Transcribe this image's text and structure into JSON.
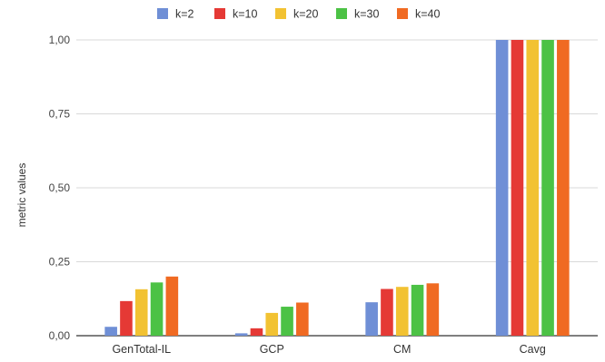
{
  "chart_data": {
    "type": "bar",
    "title": "",
    "xlabel": "",
    "ylabel": "metric values",
    "ylim": [
      0,
      1
    ],
    "yticks": [
      "0,00",
      "0,25",
      "0,50",
      "0,75",
      "1,00"
    ],
    "ytick_values": [
      0,
      0.25,
      0.5,
      0.75,
      1.0
    ],
    "grid": true,
    "legend_position": "top",
    "categories": [
      "GenTotal-IL",
      "GCP",
      "CM",
      "Cavg"
    ],
    "series": [
      {
        "name": "k=2",
        "color": "#6f8fd6",
        "values": [
          0.03,
          0.008,
          0.113,
          1.0
        ]
      },
      {
        "name": "k=10",
        "color": "#e53935",
        "values": [
          0.117,
          0.025,
          0.158,
          1.0
        ]
      },
      {
        "name": "k=20",
        "color": "#f2c232",
        "values": [
          0.157,
          0.077,
          0.165,
          1.0
        ]
      },
      {
        "name": "k=30",
        "color": "#4cc245",
        "values": [
          0.18,
          0.098,
          0.172,
          1.0
        ]
      },
      {
        "name": "k=40",
        "color": "#f06a22",
        "values": [
          0.2,
          0.112,
          0.177,
          1.0
        ]
      }
    ]
  }
}
